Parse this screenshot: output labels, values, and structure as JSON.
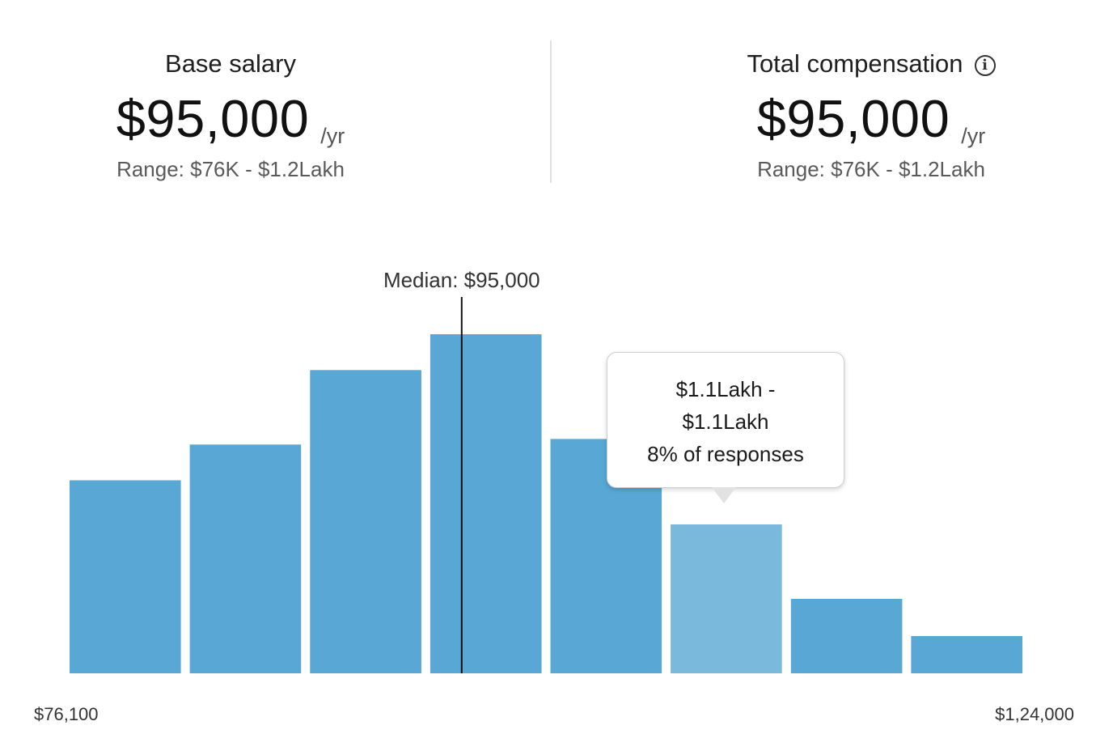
{
  "base_salary": {
    "label": "Base salary",
    "amount": "$95,000",
    "unit": "/yr",
    "range": "Range: $76K - $1.2Lakh"
  },
  "total_compensation": {
    "label": "Total compensation",
    "info_icon": "info-icon",
    "amount": "$95,000",
    "unit": "/yr",
    "range": "Range: $76K - $1.2Lakh"
  },
  "tooltip": {
    "range_start": "$1.1Lakh -",
    "range_end": "$1.1Lakh",
    "share": "8% of responses"
  },
  "chart_data": {
    "type": "bar",
    "title": "",
    "xlabel": "",
    "ylabel": "",
    "x_min_label": "$76,100",
    "x_max_label": "$1,24,000",
    "median_label": "Median: $95,000",
    "median_value": 95000,
    "x_range": [
      76100,
      124000
    ],
    "values": [
      7,
      8.3,
      11,
      12.3,
      8.5,
      5.4,
      2.7,
      1.35
    ],
    "ylim": [
      0,
      12.3
    ],
    "highlighted_index": 5,
    "grid": false,
    "legend": "none",
    "colors": {
      "bar": "#58a7d4",
      "bar_hover": "#7ab8dc",
      "median_line": "#111111"
    }
  }
}
